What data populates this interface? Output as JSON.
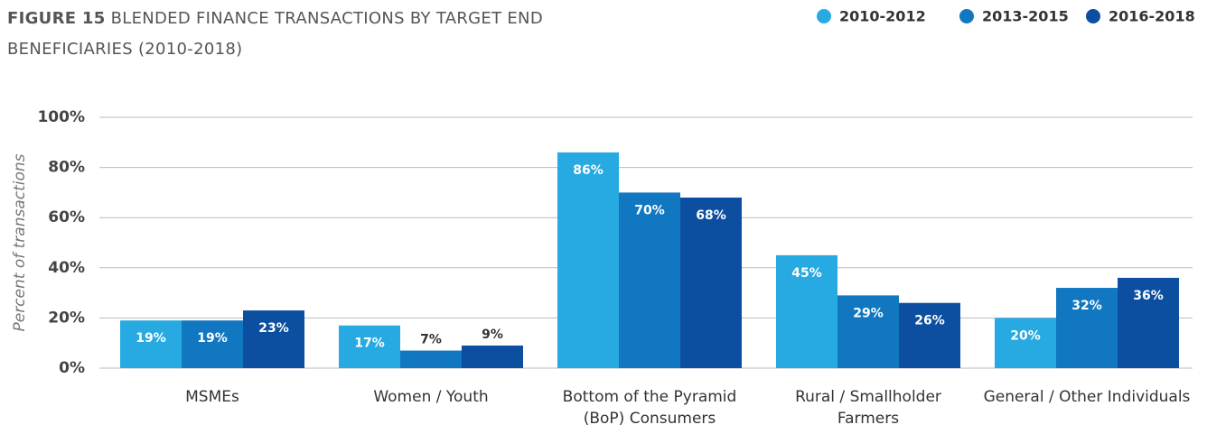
{
  "chart_data": {
    "type": "bar",
    "figure_label": "FIGURE 15",
    "title": "BLENDED FINANCE TRANSACTIONS BY TARGET END BENEFICIARIES (2010-2018)",
    "ylabel": "Percent of transactions",
    "categories": [
      "MSMEs",
      "Women / Youth",
      "Bottom of the Pyramid (BoP) Consumers",
      "Rural / Smallholder Farmers",
      "General / Other Individuals"
    ],
    "series": [
      {
        "name": "2010-2012",
        "color": "#27a9e1",
        "values": [
          19,
          17,
          86,
          45,
          20
        ],
        "value_labels": [
          "19%",
          "17%",
          "86%",
          "45%",
          "20%"
        ]
      },
      {
        "name": "2013-2015",
        "color": "#1177c1",
        "values": [
          19,
          7,
          70,
          29,
          32
        ],
        "value_labels": [
          "19%",
          "7%",
          "70%",
          "29%",
          "32%"
        ]
      },
      {
        "name": "2016-2018",
        "color": "#0c4fa0",
        "values": [
          23,
          9,
          68,
          26,
          36
        ],
        "value_labels": [
          "23%",
          "9%",
          "68%",
          "26%",
          "36%"
        ]
      }
    ],
    "ylim": [
      0,
      100
    ],
    "yticks": [
      {
        "value": 0,
        "label": "0%"
      },
      {
        "value": 20,
        "label": "20%"
      },
      {
        "value": 40,
        "label": "40%"
      },
      {
        "value": 60,
        "label": "60%"
      },
      {
        "value": 80,
        "label": "80%"
      },
      {
        "value": 100,
        "label": "100%"
      }
    ],
    "grid": true,
    "legend": "top-right"
  }
}
